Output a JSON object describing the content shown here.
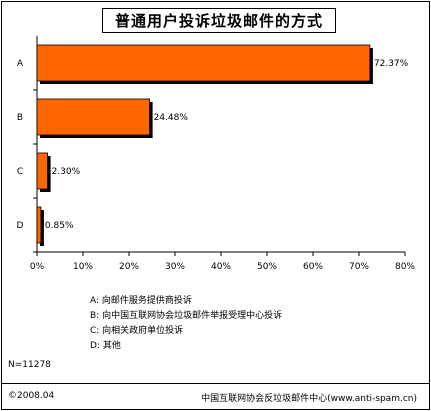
{
  "chart_data": {
    "type": "bar",
    "orientation": "horizontal",
    "title": "普通用户投诉垃圾邮件的方式",
    "categories": [
      "A",
      "B",
      "C",
      "D"
    ],
    "values": [
      72.37,
      24.48,
      2.3,
      0.85
    ],
    "value_labels": [
      "72.37%",
      "24.48%",
      "2.30%",
      "0.85%"
    ],
    "xlim": [
      0,
      80
    ],
    "x_ticks": [
      "0%",
      "10%",
      "20%",
      "30%",
      "40%",
      "50%",
      "60%",
      "70%",
      "80%"
    ],
    "bar_color": "#ff6600",
    "bar_shadow_color": "#000000",
    "legend": [
      "A:  向邮件服务提供商投诉",
      "B:  向中国互联网协会垃圾邮件举报受理中心投诉",
      "C:  向相关政府单位投诉",
      "D:  其他"
    ],
    "sample_size": "N=11278"
  },
  "footer": {
    "date": "©2008.04",
    "source": "中国互联网协会反垃圾邮件中心(www.anti-spam.cn)"
  }
}
